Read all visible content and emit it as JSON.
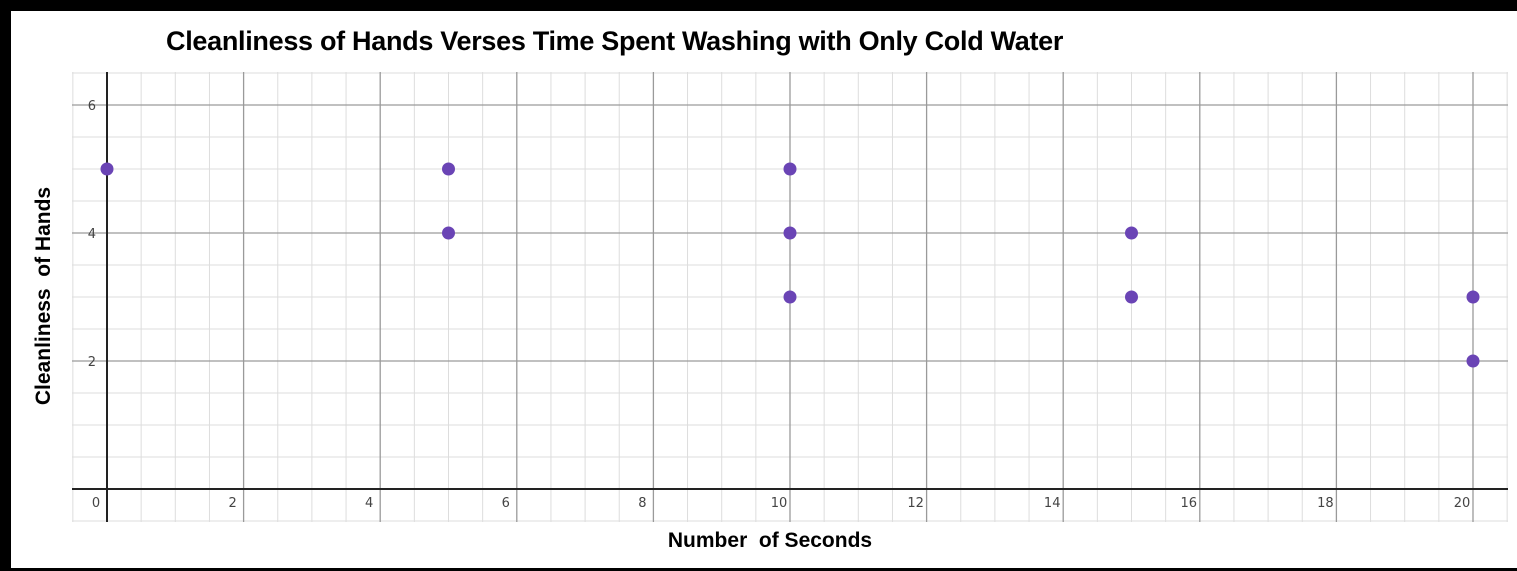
{
  "chart_data": {
    "type": "scatter",
    "title": "Cleanliness of Hands Verses Time Spent Washing with Only Cold Water",
    "xlabel": "Number  of Seconds",
    "ylabel": "Cleanliness  of Hands",
    "xlim": [
      -1,
      20.8
    ],
    "ylim": [
      -0.55,
      6.5
    ],
    "xticks": [
      0,
      2,
      4,
      6,
      8,
      10,
      12,
      14,
      16,
      18,
      20
    ],
    "yticks": [
      2,
      4,
      6
    ],
    "x_tick_labels": [
      "0",
      "2",
      "4",
      "6",
      "8",
      "10",
      "12",
      "14",
      "16",
      "18",
      "20"
    ],
    "y_tick_labels": [
      "2",
      "4",
      "6"
    ],
    "grid": true,
    "points": [
      {
        "x": 0,
        "y": 5
      },
      {
        "x": 5,
        "y": 5
      },
      {
        "x": 5,
        "y": 4
      },
      {
        "x": 10,
        "y": 5
      },
      {
        "x": 10,
        "y": 4
      },
      {
        "x": 10,
        "y": 3
      },
      {
        "x": 15,
        "y": 4
      },
      {
        "x": 15,
        "y": 3
      },
      {
        "x": 20,
        "y": 3
      },
      {
        "x": 20,
        "y": 2
      }
    ],
    "point_color": "#6a44b5",
    "major_grid_color": "#9a9a9a",
    "minor_grid_color": "#dddddd",
    "axis_color": "#222222"
  }
}
